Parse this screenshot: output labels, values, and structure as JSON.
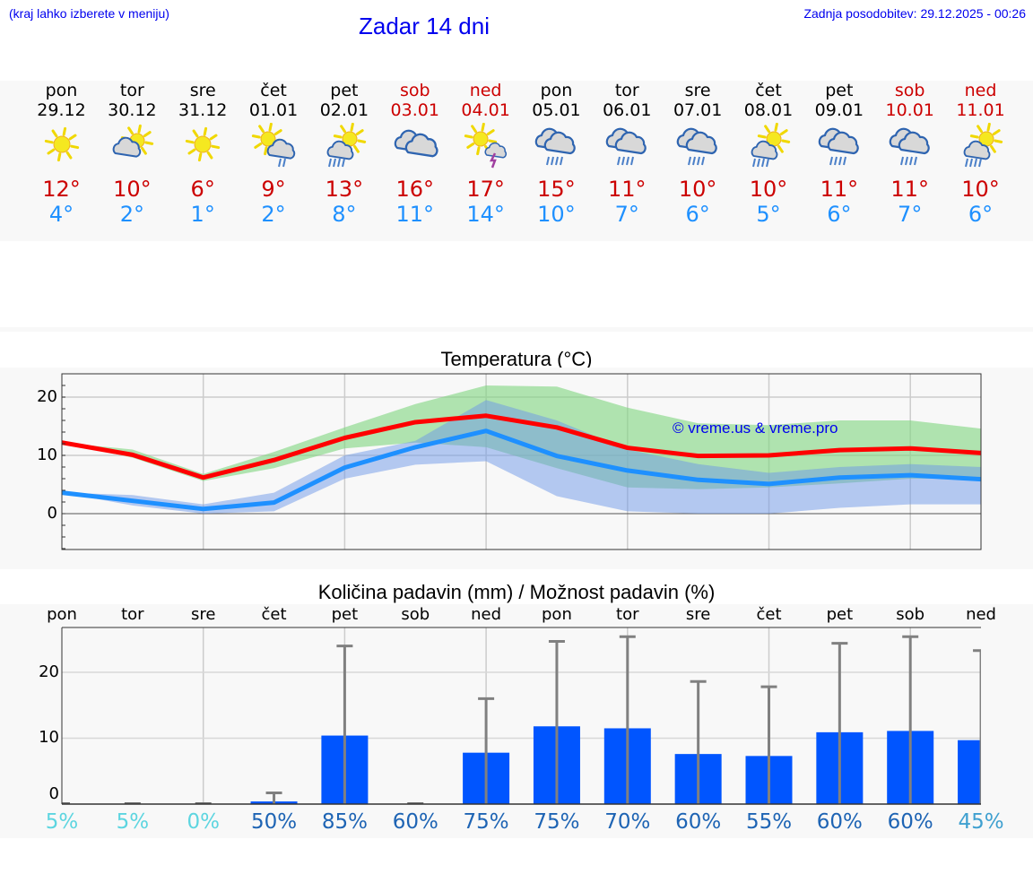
{
  "header": {
    "menu_hint": "(kraj lahko izberete v meniju)",
    "title": "Zadar 14 dni",
    "last_update": "Zadnja posodobitev: 29.12.2025 - 00:26"
  },
  "colors": {
    "link_blue": "#0000ee",
    "max_temp": "#cc0000",
    "min_temp": "#1e90ff",
    "max_line": "#ff0000",
    "min_line": "#1e90ff",
    "max_band": "#a8e6a8",
    "min_band": "#adc6f2",
    "overlap_band": "#7ec8a8",
    "precip_bar": "#0055ff",
    "error_bar": "#808080",
    "pct_low": "#5dd5e0",
    "pct_high": "#1e64b4",
    "pct_mid": "#3fa0d0"
  },
  "days": [
    {
      "name": "pon",
      "date": "29.12",
      "weekend": false,
      "icon": "sun-icon",
      "max": "12°",
      "min": "4°"
    },
    {
      "name": "tor",
      "date": "30.12",
      "weekend": false,
      "icon": "sun-cloud-icon",
      "max": "10°",
      "min": "2°"
    },
    {
      "name": "sre",
      "date": "31.12",
      "weekend": false,
      "icon": "sun-icon",
      "max": "6°",
      "min": "1°"
    },
    {
      "name": "čet",
      "date": "01.01",
      "weekend": false,
      "icon": "sun-cloud-light-rain-icon",
      "max": "9°",
      "min": "2°"
    },
    {
      "name": "pet",
      "date": "02.01",
      "weekend": false,
      "icon": "sun-cloud-rain-icon",
      "max": "13°",
      "min": "8°"
    },
    {
      "name": "sob",
      "date": "03.01",
      "weekend": true,
      "icon": "cloudy-icon",
      "max": "16°",
      "min": "11°"
    },
    {
      "name": "ned",
      "date": "04.01",
      "weekend": true,
      "icon": "sun-thunderstorm-icon",
      "max": "17°",
      "min": "14°"
    },
    {
      "name": "pon",
      "date": "05.01",
      "weekend": false,
      "icon": "cloud-rain-icon",
      "max": "15°",
      "min": "10°"
    },
    {
      "name": "tor",
      "date": "06.01",
      "weekend": false,
      "icon": "cloud-rain-icon",
      "max": "11°",
      "min": "7°"
    },
    {
      "name": "sre",
      "date": "07.01",
      "weekend": false,
      "icon": "cloud-rain-icon",
      "max": "10°",
      "min": "6°"
    },
    {
      "name": "čet",
      "date": "08.01",
      "weekend": false,
      "icon": "sun-cloud-rain-icon",
      "max": "10°",
      "min": "5°"
    },
    {
      "name": "pet",
      "date": "09.01",
      "weekend": false,
      "icon": "cloud-rain-icon",
      "max": "11°",
      "min": "6°"
    },
    {
      "name": "sob",
      "date": "10.01",
      "weekend": true,
      "icon": "cloud-rain-icon",
      "max": "11°",
      "min": "7°"
    },
    {
      "name": "ned",
      "date": "11.01",
      "weekend": true,
      "icon": "sun-cloud-rain-icon",
      "max": "10°",
      "min": "6°"
    }
  ],
  "temperature_chart": {
    "title": "Temperatura (°C)",
    "watermark": "© vreme.us & vreme.pro",
    "yticks": [
      "20",
      "10",
      "0"
    ]
  },
  "precip_chart": {
    "title": "Količina padavin (mm) / Možnost padavin (%)",
    "yticks": [
      "20",
      "10",
      "0"
    ],
    "day_labels": [
      "pon",
      "tor",
      "sre",
      "čet",
      "pet",
      "sob",
      "ned",
      "pon",
      "tor",
      "sre",
      "čet",
      "pet",
      "sob",
      "ned"
    ],
    "chance": [
      "5%",
      "5%",
      "0%",
      "50%",
      "85%",
      "60%",
      "75%",
      "75%",
      "70%",
      "60%",
      "55%",
      "60%",
      "60%",
      "45%"
    ]
  },
  "chart_data": [
    {
      "type": "line",
      "title": "Temperatura (°C)",
      "xlabel": "",
      "ylabel": "°C",
      "ylim": [
        -6,
        24
      ],
      "grid": true,
      "categories": [
        "29.12",
        "30.12",
        "31.12",
        "01.01",
        "02.01",
        "03.01",
        "04.01",
        "05.01",
        "06.01",
        "07.01",
        "08.01",
        "09.01",
        "10.01",
        "11.01"
      ],
      "series": [
        {
          "name": "Max temperature",
          "color": "#ff0000",
          "values": [
            12.2,
            10.1,
            6.2,
            9.2,
            13.0,
            15.7,
            16.8,
            14.8,
            11.3,
            9.9,
            10.0,
            10.9,
            11.2,
            10.4
          ]
        },
        {
          "name": "Min temperature",
          "color": "#1e90ff",
          "values": [
            3.6,
            2.2,
            0.8,
            1.9,
            7.9,
            11.4,
            14.2,
            9.9,
            7.4,
            5.8,
            5.1,
            6.2,
            6.6,
            5.9
          ]
        },
        {
          "name": "Max range upper",
          "values": [
            12.2,
            11.0,
            6.8,
            10.6,
            14.8,
            18.8,
            22.0,
            21.8,
            18.2,
            15.5,
            15.2,
            16.0,
            16.0,
            14.6
          ]
        },
        {
          "name": "Max range lower",
          "values": [
            12.2,
            9.6,
            5.6,
            7.8,
            11.2,
            12.2,
            11.4,
            7.8,
            4.5,
            4.2,
            4.5,
            5.2,
            6.0,
            6.0
          ]
        },
        {
          "name": "Min range upper",
          "values": [
            3.6,
            3.2,
            1.6,
            3.6,
            10.0,
            12.5,
            19.5,
            16.0,
            11.0,
            8.5,
            7.0,
            8.0,
            8.5,
            8.0
          ]
        },
        {
          "name": "Min range lower",
          "values": [
            3.6,
            1.4,
            0.0,
            0.4,
            6.0,
            8.4,
            9.0,
            3.0,
            0.4,
            0.0,
            0.0,
            1.0,
            1.6,
            1.6
          ]
        }
      ],
      "annotations": [
        "© vreme.us & vreme.pro"
      ]
    },
    {
      "type": "bar",
      "title": "Količina padavin (mm) / Možnost padavin (%)",
      "xlabel": "",
      "ylabel": "mm",
      "ylim": [
        0,
        27
      ],
      "grid": true,
      "categories": [
        "pon",
        "tor",
        "sre",
        "čet",
        "pet",
        "sob",
        "ned",
        "pon",
        "tor",
        "sre",
        "čet",
        "pet",
        "sob",
        "ned"
      ],
      "series": [
        {
          "name": "Precipitation (mm)",
          "color": "#0055ff",
          "values": [
            0,
            0,
            0,
            0.4,
            10.4,
            0,
            7.8,
            11.8,
            11.5,
            7.6,
            7.3,
            10.9,
            11.1,
            9.7
          ]
        },
        {
          "name": "Precipitation max (mm)",
          "color": "#808080",
          "values": [
            0,
            0,
            0,
            1.7,
            24.0,
            0,
            16.0,
            24.7,
            25.4,
            18.6,
            17.8,
            24.4,
            25.4,
            23.3
          ]
        },
        {
          "name": "Chance of precipitation (%)",
          "values": [
            5,
            5,
            0,
            50,
            85,
            60,
            75,
            75,
            70,
            60,
            55,
            60,
            60,
            45
          ]
        }
      ]
    }
  ]
}
